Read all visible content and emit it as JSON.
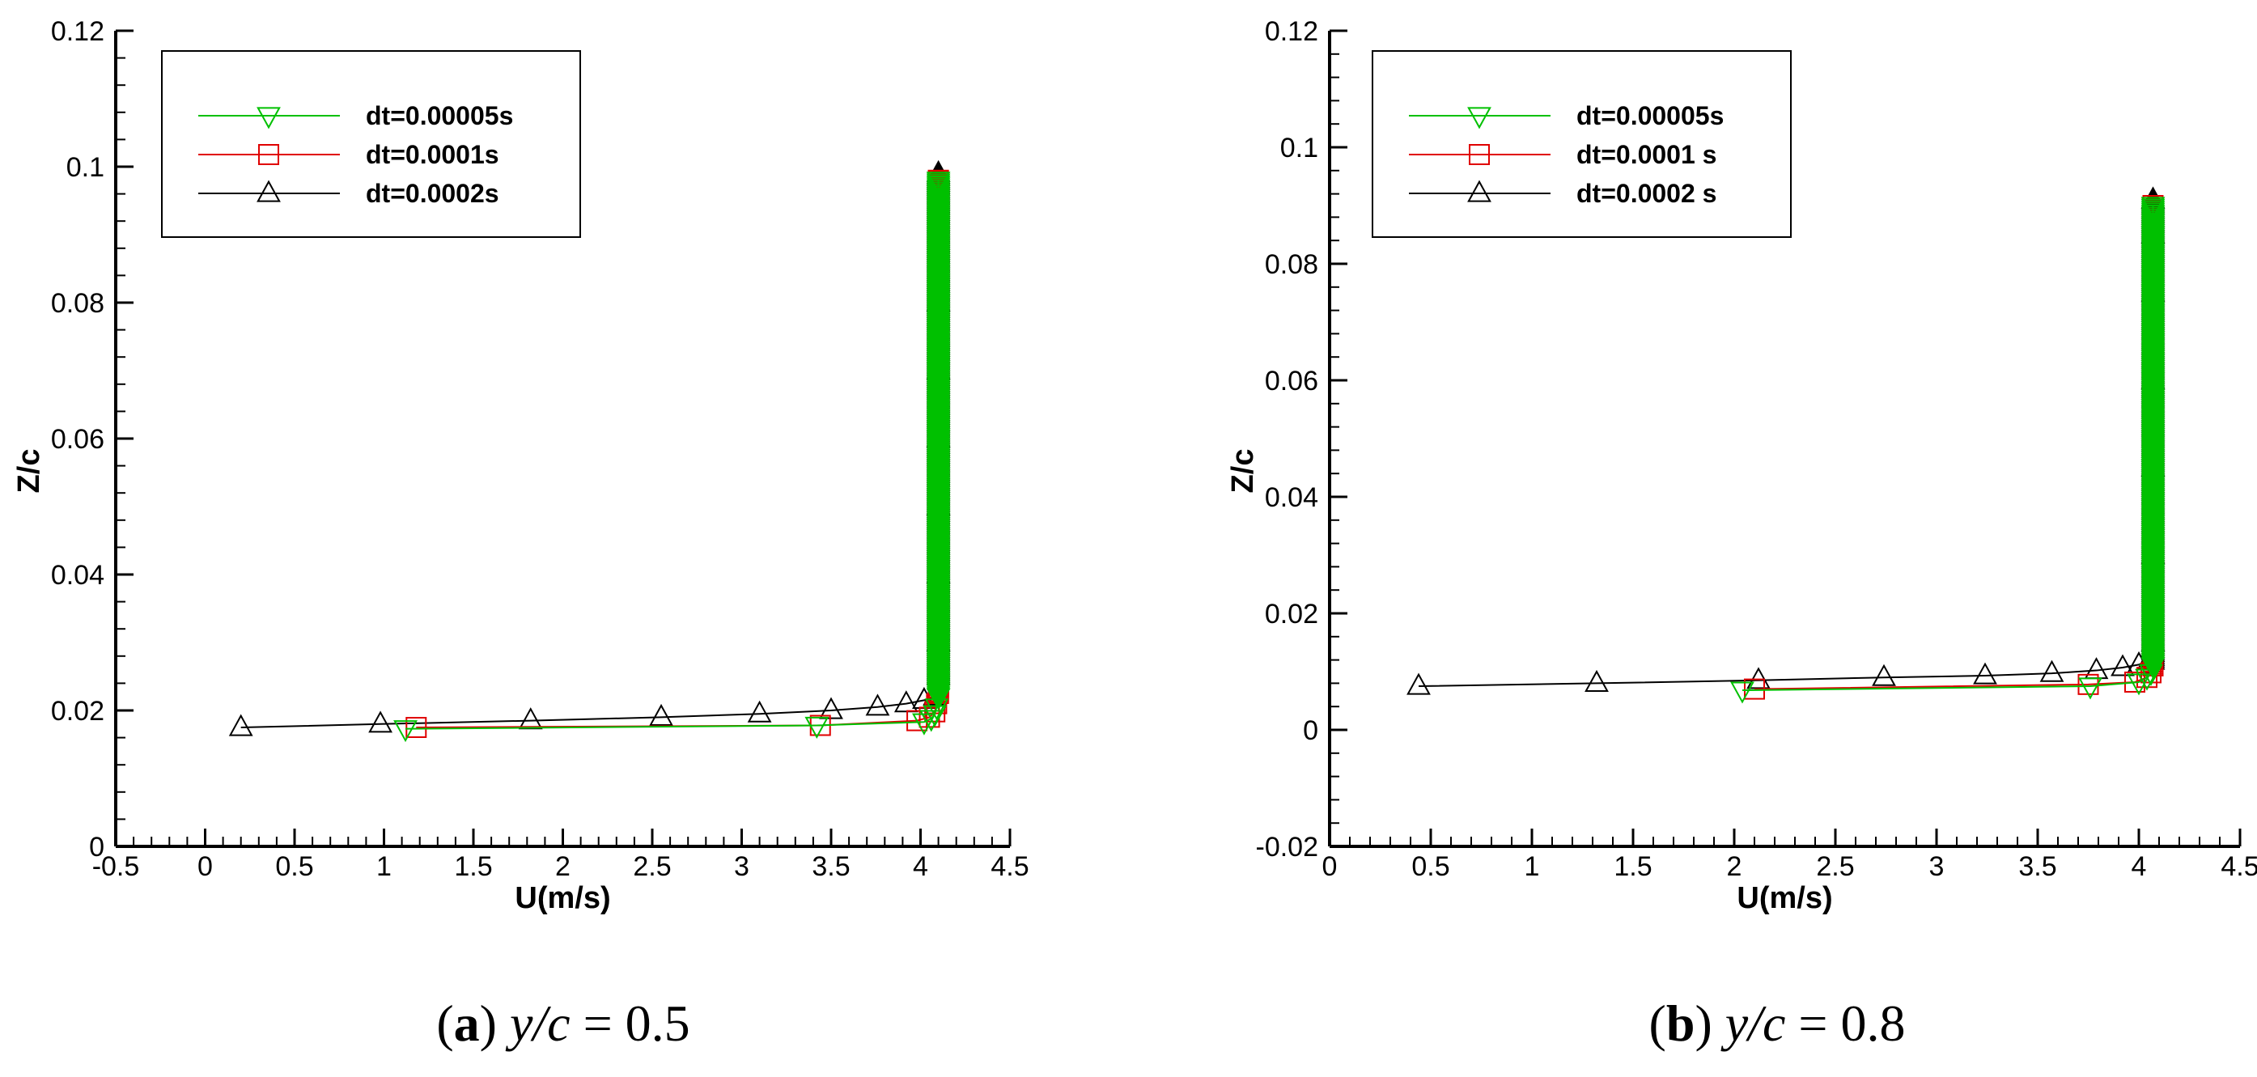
{
  "chart_data": [
    {
      "type": "line",
      "panel_label": "a",
      "caption": {
        "open": "(",
        "letter": "a",
        "close": ")",
        "var": "y/c",
        "eq": " = ",
        "value": "0.5"
      },
      "xlabel": "U(m/s)",
      "ylabel": "Z/c",
      "xlim": [
        -0.5,
        4.5
      ],
      "ylim": [
        0,
        0.12
      ],
      "xticks": [
        "-0.5",
        "0",
        "0.5",
        "1",
        "1.5",
        "2",
        "2.5",
        "3",
        "3.5",
        "4",
        "4.5"
      ],
      "yticks": [
        "0",
        "0.02",
        "0.04",
        "0.06",
        "0.08",
        "0.1",
        "0.12"
      ],
      "grid": false,
      "legend_position": "top-left",
      "series": [
        {
          "name": "dt=0.00005s",
          "color": "#00c000",
          "marker": "triangle-down",
          "x": [
            1.12,
            3.42,
            4.02,
            4.06,
            4.08,
            4.09,
            4.1,
            4.1,
            4.1,
            4.1,
            4.1,
            4.1,
            4.1,
            4.1
          ],
          "y": [
            0.0173,
            0.0178,
            0.0183,
            0.0188,
            0.0195,
            0.0205,
            0.022,
            0.03,
            0.04,
            0.05,
            0.06,
            0.07,
            0.08,
            0.098
          ]
        },
        {
          "name": "dt=0.0001s",
          "color": "#e00000",
          "marker": "square",
          "x": [
            1.18,
            3.44,
            3.98,
            4.05,
            4.08,
            4.09,
            4.1,
            4.1,
            4.1,
            4.1,
            4.1,
            4.1,
            4.1,
            4.1
          ],
          "y": [
            0.0175,
            0.0178,
            0.0185,
            0.019,
            0.0198,
            0.021,
            0.0225,
            0.03,
            0.04,
            0.05,
            0.06,
            0.07,
            0.08,
            0.098
          ]
        },
        {
          "name": "dt=0.0002s",
          "color": "#000000",
          "marker": "triangle-up",
          "x": [
            0.2,
            0.98,
            1.82,
            2.55,
            3.1,
            3.5,
            3.76,
            3.92,
            4.02,
            4.08,
            4.1,
            4.1,
            4.1,
            4.1,
            4.1,
            4.1,
            4.1,
            4.1
          ],
          "y": [
            0.0175,
            0.018,
            0.0185,
            0.019,
            0.0195,
            0.02,
            0.0205,
            0.021,
            0.0215,
            0.022,
            0.025,
            0.03,
            0.04,
            0.05,
            0.06,
            0.07,
            0.08,
            0.099
          ]
        }
      ]
    },
    {
      "type": "line",
      "panel_label": "b",
      "caption": {
        "open": "(",
        "letter": "b",
        "close": ")",
        "var": "y/c",
        "eq": " = ",
        "value": "0.8"
      },
      "xlabel": "U(m/s)",
      "ylabel": "Z/c",
      "xlim": [
        0,
        4.5
      ],
      "ylim": [
        -0.02,
        0.12
      ],
      "xticks": [
        "0",
        "0.5",
        "1",
        "1.5",
        "2",
        "2.5",
        "3",
        "3.5",
        "4",
        "4.5"
      ],
      "yticks": [
        "-0.02",
        "0",
        "0.02",
        "0.04",
        "0.06",
        "0.08",
        "0.1",
        "0.12"
      ],
      "grid": false,
      "legend_position": "top-left",
      "series": [
        {
          "name": "dt=0.00005s",
          "color": "#00c000",
          "marker": "triangle-down",
          "x": [
            2.04,
            3.76,
            4.0,
            4.04,
            4.06,
            4.07,
            4.07,
            4.07,
            4.07,
            4.07,
            4.07,
            4.07,
            4.07
          ],
          "y": [
            0.0068,
            0.0075,
            0.0082,
            0.009,
            0.0098,
            0.011,
            0.015,
            0.03,
            0.045,
            0.06,
            0.075,
            0.085,
            0.09
          ]
        },
        {
          "name": "dt=0.0001 s",
          "color": "#e00000",
          "marker": "square",
          "x": [
            2.1,
            3.75,
            3.98,
            4.04,
            4.06,
            4.07,
            4.07,
            4.07,
            4.07,
            4.07,
            4.07,
            4.07,
            4.07
          ],
          "y": [
            0.007,
            0.0078,
            0.0082,
            0.009,
            0.0098,
            0.011,
            0.015,
            0.03,
            0.045,
            0.06,
            0.075,
            0.085,
            0.09
          ]
        },
        {
          "name": "dt=0.0002 s",
          "color": "#000000",
          "marker": "triangle-up",
          "x": [
            0.44,
            1.32,
            2.12,
            2.74,
            3.24,
            3.57,
            3.79,
            3.92,
            4.0,
            4.05,
            4.07,
            4.07,
            4.07,
            4.07,
            4.07,
            4.07,
            4.07
          ],
          "y": [
            0.0075,
            0.008,
            0.0085,
            0.009,
            0.0093,
            0.0097,
            0.0102,
            0.0107,
            0.0112,
            0.0118,
            0.015,
            0.03,
            0.045,
            0.06,
            0.075,
            0.085,
            0.091
          ]
        }
      ]
    }
  ]
}
